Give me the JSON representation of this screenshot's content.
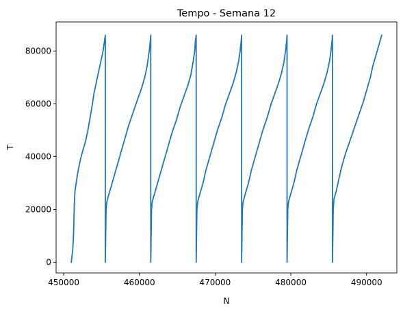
{
  "chart_data": {
    "type": "line",
    "title": "Tempo - Semana 12",
    "xlabel": "N",
    "ylabel": "T",
    "xlim": [
      449000,
      494000
    ],
    "ylim": [
      -4000,
      91000
    ],
    "xticks": [
      450000,
      460000,
      470000,
      480000,
      490000
    ],
    "yticks": [
      0,
      20000,
      40000,
      60000,
      80000
    ],
    "grid": false,
    "series_color": "#1f77b4",
    "series": [
      {
        "values": [
          [
            451000,
            0
          ],
          [
            451100,
            2500
          ],
          [
            451200,
            5000
          ],
          [
            451300,
            10000
          ],
          [
            451350,
            16000
          ],
          [
            451400,
            22000
          ],
          [
            451500,
            27000
          ],
          [
            451650,
            30000
          ],
          [
            451800,
            33000
          ],
          [
            452000,
            36000
          ],
          [
            452300,
            40000
          ],
          [
            452600,
            43000
          ],
          [
            452900,
            46000
          ],
          [
            453200,
            50000
          ],
          [
            453500,
            55000
          ],
          [
            453800,
            60000
          ],
          [
            454000,
            64000
          ],
          [
            454300,
            68000
          ],
          [
            454600,
            72000
          ],
          [
            454900,
            76000
          ],
          [
            455200,
            80000
          ],
          [
            455350,
            83000
          ],
          [
            455500,
            86000
          ],
          [
            455500,
            0
          ],
          [
            455600,
            20000
          ],
          [
            455700,
            23000
          ],
          [
            455900,
            25000
          ],
          [
            456300,
            29000
          ],
          [
            456700,
            33000
          ],
          [
            457100,
            37000
          ],
          [
            457600,
            42000
          ],
          [
            458100,
            47000
          ],
          [
            458600,
            52000
          ],
          [
            459200,
            57000
          ],
          [
            459800,
            62000
          ],
          [
            460300,
            66000
          ],
          [
            460700,
            70000
          ],
          [
            461000,
            74000
          ],
          [
            461300,
            80000
          ],
          [
            461450,
            84000
          ],
          [
            461500,
            86000
          ],
          [
            461500,
            0
          ],
          [
            461600,
            20000
          ],
          [
            461700,
            23000
          ],
          [
            462000,
            26000
          ],
          [
            462400,
            30000
          ],
          [
            462800,
            34000
          ],
          [
            463300,
            39000
          ],
          [
            463800,
            44000
          ],
          [
            464300,
            49000
          ],
          [
            464900,
            54000
          ],
          [
            465400,
            59000
          ],
          [
            465900,
            63000
          ],
          [
            466400,
            67000
          ],
          [
            466800,
            71000
          ],
          [
            467100,
            76000
          ],
          [
            467300,
            80000
          ],
          [
            467400,
            84000
          ],
          [
            467500,
            86000
          ],
          [
            467500,
            0
          ],
          [
            467600,
            20000
          ],
          [
            467700,
            23000
          ],
          [
            468000,
            26000
          ],
          [
            468400,
            30000
          ],
          [
            468800,
            35000
          ],
          [
            469300,
            40000
          ],
          [
            469800,
            45000
          ],
          [
            470300,
            50000
          ],
          [
            470900,
            55000
          ],
          [
            471400,
            60000
          ],
          [
            471900,
            64000
          ],
          [
            472400,
            68000
          ],
          [
            472800,
            72000
          ],
          [
            473100,
            76000
          ],
          [
            473300,
            80000
          ],
          [
            473450,
            84000
          ],
          [
            473500,
            86000
          ],
          [
            473500,
            0
          ],
          [
            473600,
            20000
          ],
          [
            473700,
            23000
          ],
          [
            474000,
            26000
          ],
          [
            474400,
            30000
          ],
          [
            474800,
            35000
          ],
          [
            475300,
            40000
          ],
          [
            475800,
            45000
          ],
          [
            476300,
            50000
          ],
          [
            476900,
            55000
          ],
          [
            477400,
            60000
          ],
          [
            477900,
            64000
          ],
          [
            478400,
            68000
          ],
          [
            478800,
            72000
          ],
          [
            479100,
            76000
          ],
          [
            479300,
            80000
          ],
          [
            479450,
            84000
          ],
          [
            479500,
            86000
          ],
          [
            479500,
            0
          ],
          [
            479600,
            20000
          ],
          [
            479700,
            23000
          ],
          [
            480000,
            26000
          ],
          [
            480400,
            30000
          ],
          [
            480800,
            35000
          ],
          [
            481300,
            40000
          ],
          [
            481800,
            45000
          ],
          [
            482300,
            50000
          ],
          [
            482900,
            55000
          ],
          [
            483400,
            60000
          ],
          [
            483900,
            64000
          ],
          [
            484400,
            68000
          ],
          [
            484800,
            72000
          ],
          [
            485100,
            76000
          ],
          [
            485300,
            80000
          ],
          [
            485450,
            84000
          ],
          [
            485500,
            86000
          ],
          [
            485500,
            0
          ],
          [
            485600,
            20000
          ],
          [
            485700,
            24000
          ],
          [
            486000,
            27000
          ],
          [
            486300,
            31000
          ],
          [
            486700,
            36000
          ],
          [
            487200,
            41000
          ],
          [
            487800,
            46000
          ],
          [
            488400,
            51000
          ],
          [
            489000,
            56000
          ],
          [
            489600,
            61000
          ],
          [
            490100,
            66000
          ],
          [
            490500,
            70000
          ],
          [
            490800,
            74000
          ],
          [
            491200,
            78000
          ],
          [
            491600,
            82000
          ],
          [
            492000,
            86000
          ]
        ]
      }
    ]
  }
}
